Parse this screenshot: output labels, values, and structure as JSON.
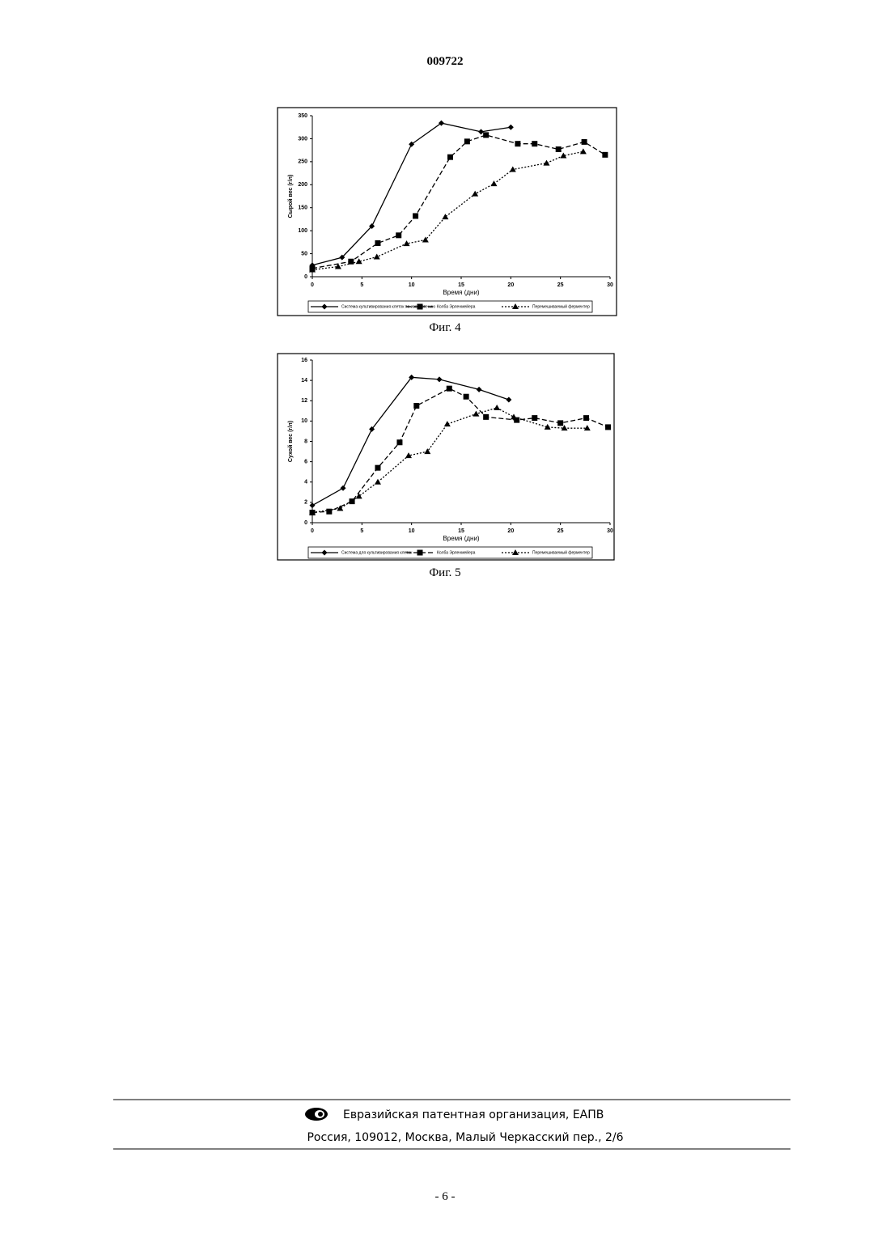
{
  "header": {
    "number": "009722"
  },
  "chart_data": [
    {
      "type": "line",
      "y_label": "Сырой вес (г/л)",
      "x_label": "Время (дни)",
      "xlim": [
        0,
        30
      ],
      "xticks": [
        0,
        5,
        10,
        15,
        20,
        25,
        30
      ],
      "ylim": [
        0,
        350
      ],
      "yticks": [
        0,
        50,
        100,
        150,
        200,
        250,
        300,
        350
      ],
      "series": [
        {
          "name": "Система культивирования клеток по изобретению",
          "color": "#000000",
          "marker": "diamond",
          "dash": "solid",
          "x": [
            0,
            3,
            6,
            10,
            13,
            17,
            20
          ],
          "values": [
            25,
            42,
            110,
            288,
            334,
            315,
            325
          ]
        },
        {
          "name": "Колба Эрленмейера",
          "color": "#000000",
          "marker": "square",
          "dash": "dashed",
          "x": [
            0,
            3.9,
            6.6,
            8.7,
            10.4,
            13.9,
            15.6,
            17.5,
            20.7,
            22.4,
            24.8,
            27.4,
            29.5
          ],
          "values": [
            18,
            33,
            73,
            90,
            132,
            260,
            294,
            308,
            289,
            289,
            277,
            293,
            265
          ]
        },
        {
          "name": "Перемешиваемый ферментер",
          "color": "#000000",
          "marker": "triangle",
          "dash": "dotted",
          "x": [
            0,
            2.6,
            4.7,
            6.5,
            9.5,
            11.4,
            13.4,
            16.4,
            18.3,
            20.2,
            23.6,
            25.3,
            27.3
          ],
          "values": [
            15,
            22,
            33,
            43,
            72,
            80,
            130,
            180,
            202,
            233,
            247,
            263,
            272
          ]
        }
      ]
    },
    {
      "type": "line",
      "y_label": "Сухой вес (г/л)",
      "x_label": "Время (дни)",
      "xlim": [
        0,
        30
      ],
      "xticks": [
        0,
        5,
        10,
        15,
        20,
        25,
        30
      ],
      "ylim": [
        0,
        16
      ],
      "yticks": [
        0,
        2,
        4,
        6,
        8,
        10,
        12,
        14,
        16
      ],
      "series": [
        {
          "name": "Система для культивирования клеток",
          "color": "#000000",
          "marker": "diamond",
          "dash": "solid",
          "x": [
            0,
            3.1,
            6,
            10,
            12.8,
            16.8,
            19.8
          ],
          "values": [
            1.7,
            3.4,
            9.2,
            14.3,
            14.1,
            13.1,
            12.1
          ]
        },
        {
          "name": "Колба Эрленмейера",
          "color": "#000000",
          "marker": "square",
          "dash": "dashed",
          "x": [
            0,
            1.7,
            4,
            6.6,
            8.8,
            10.5,
            13.8,
            15.5,
            17.5,
            20.6,
            22.4,
            25,
            27.6,
            29.8
          ],
          "values": [
            1.0,
            1.1,
            2.1,
            5.4,
            7.9,
            11.5,
            13.2,
            12.4,
            10.4,
            10.1,
            10.3,
            9.8,
            10.3,
            9.4
          ]
        },
        {
          "name": "Перемешиваемый ферментер",
          "color": "#000000",
          "marker": "triangle",
          "dash": "dotted",
          "x": [
            0,
            2.8,
            4.7,
            6.6,
            9.7,
            11.6,
            13.6,
            16.5,
            18.6,
            20.3,
            23.7,
            25.4,
            27.7
          ],
          "values": [
            1.0,
            1.4,
            2.6,
            4.0,
            6.6,
            7.0,
            9.7,
            10.7,
            11.3,
            10.4,
            9.4,
            9.3,
            9.3
          ]
        }
      ]
    }
  ],
  "figures": [
    {
      "caption": "Фиг. 4"
    },
    {
      "caption": "Фиг. 5"
    }
  ],
  "footer": {
    "organization": "Евразийская патентная организация, ЕАПВ",
    "address": "Россия, 109012, Москва, Малый Черкасский пер., 2/6"
  },
  "page_number": "- 6 -"
}
